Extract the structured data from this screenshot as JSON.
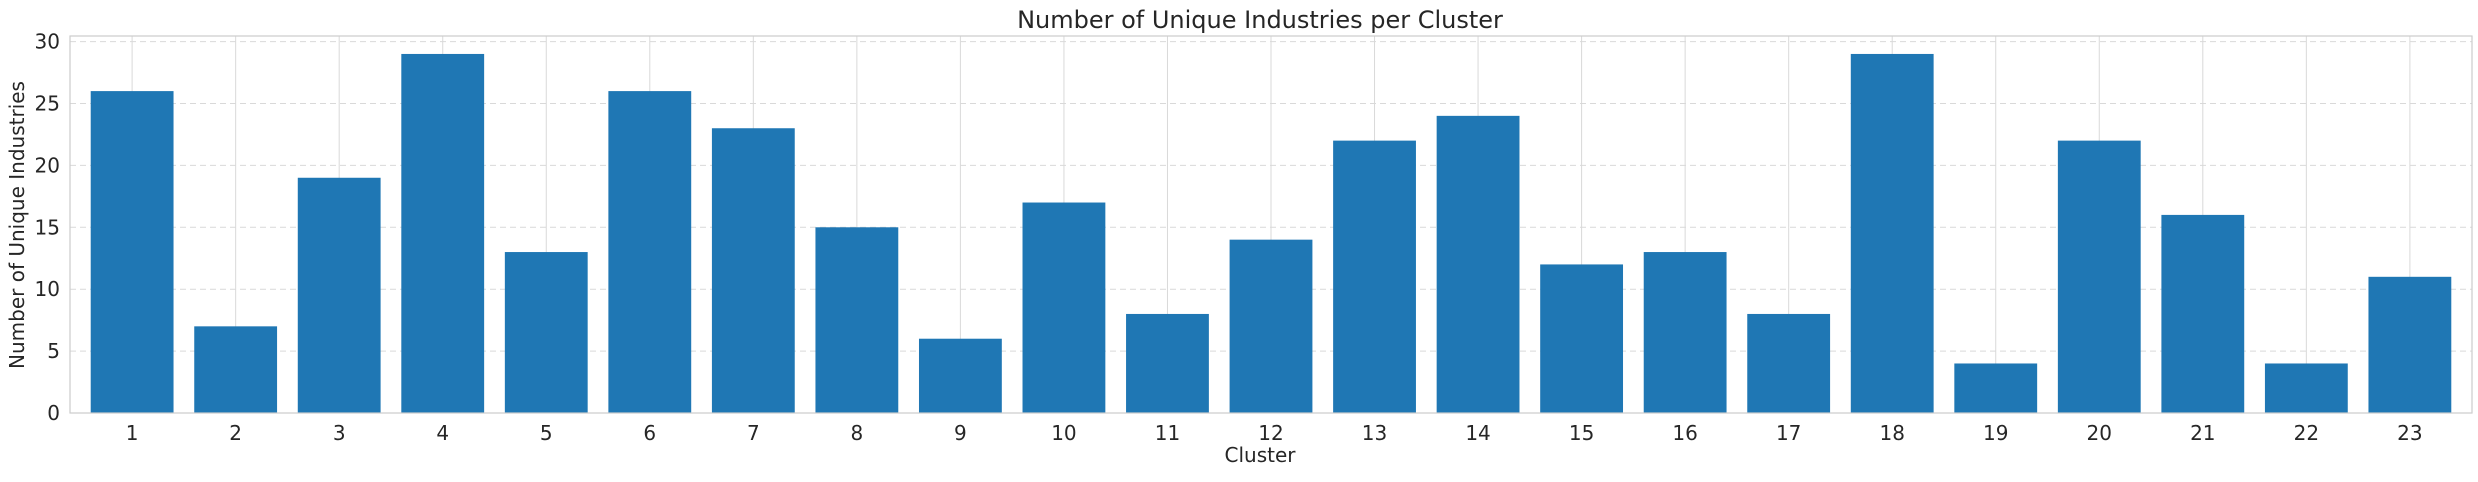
{
  "chart_data": {
    "type": "bar",
    "title": "Number of Unique Industries per Cluster",
    "xlabel": "Cluster",
    "ylabel": "Number of Unique Industries",
    "categories": [
      "1",
      "2",
      "3",
      "4",
      "5",
      "6",
      "7",
      "8",
      "9",
      "10",
      "11",
      "12",
      "13",
      "14",
      "15",
      "16",
      "17",
      "18",
      "19",
      "20",
      "21",
      "22",
      "23"
    ],
    "values": [
      26,
      7,
      19,
      29,
      13,
      26,
      23,
      15,
      6,
      17,
      8,
      14,
      22,
      24,
      12,
      13,
      8,
      29,
      4,
      22,
      16,
      4,
      11
    ],
    "yticks": [
      0,
      5,
      10,
      15,
      20,
      25,
      30
    ],
    "ylim": [
      0,
      30.45
    ],
    "grid": true,
    "bar_color": "#1f77b4",
    "grid_color": "#d9d9d9",
    "spine_color": "#cccccc"
  }
}
